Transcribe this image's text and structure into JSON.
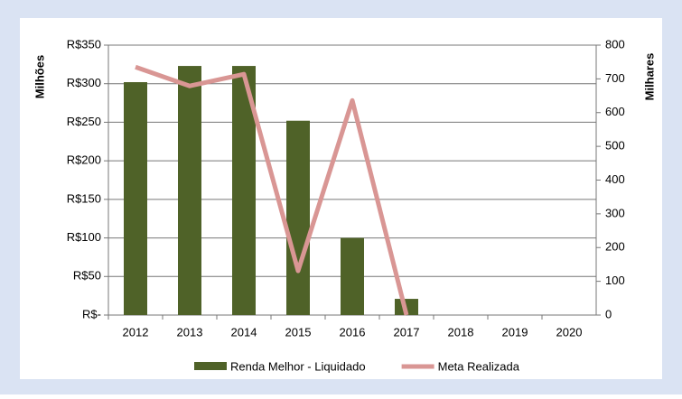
{
  "chart_data": {
    "type": "combo",
    "categories": [
      "2012",
      "2013",
      "2014",
      "2015",
      "2016",
      "2017",
      "2018",
      "2019",
      "2020"
    ],
    "series": [
      {
        "name": "Renda Melhor - Liquidado",
        "type": "bar",
        "color": "#4f6228",
        "values": [
          302,
          323,
          323,
          252,
          100,
          21,
          null,
          null,
          null
        ]
      },
      {
        "name": "Meta Realizada",
        "type": "line",
        "color": "#d99694",
        "axis": "y2",
        "values": [
          735,
          679,
          714,
          131,
          636,
          0,
          null,
          null,
          null
        ]
      }
    ],
    "ylabel": "Milhões",
    "y2label": "Milhares",
    "ylim": [
      0,
      350
    ],
    "yticks": [
      {
        "value": 0,
        "label": "R$-"
      },
      {
        "value": 50,
        "label": "R$50"
      },
      {
        "value": 100,
        "label": "R$100"
      },
      {
        "value": 150,
        "label": "R$150"
      },
      {
        "value": 200,
        "label": "R$200"
      },
      {
        "value": 250,
        "label": "R$250"
      },
      {
        "value": 300,
        "label": "R$300"
      },
      {
        "value": 350,
        "label": "R$350"
      }
    ],
    "y2lim": [
      0,
      800
    ],
    "y2ticks": [
      0,
      100,
      200,
      300,
      400,
      500,
      600,
      700,
      800
    ],
    "grid": true,
    "legend": "bottom"
  }
}
